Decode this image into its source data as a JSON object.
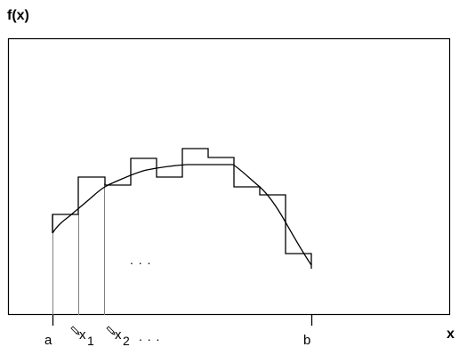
{
  "y_axis_label": "f(x)",
  "x_axis_label": "x",
  "tick_labels": {
    "a": "a",
    "x1": "x",
    "x1_sub": "1",
    "x2": "x",
    "x2_sub": "2",
    "b": "b",
    "ellipsis": ". . ."
  },
  "plot_ellipsis": ". . .",
  "colors": {
    "frame": "#000000",
    "curve": "#000000",
    "guide": "#808080"
  },
  "icons": [
    "pencil-icon",
    "pencil-icon"
  ]
}
